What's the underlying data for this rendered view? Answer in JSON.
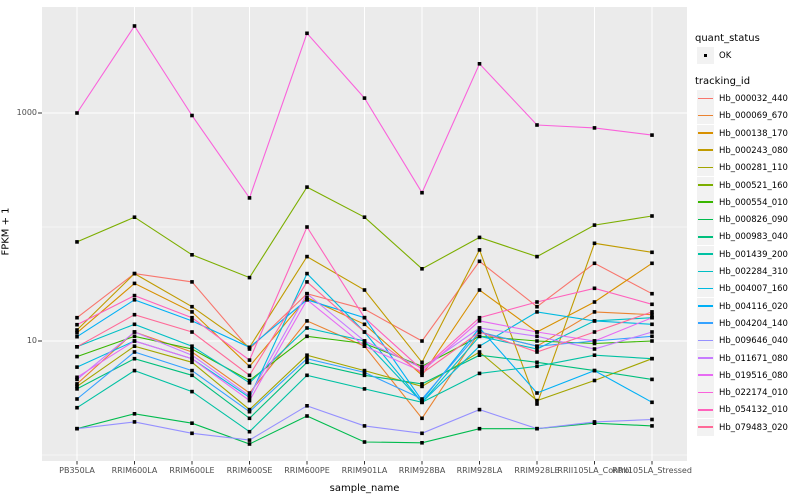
{
  "figure": {
    "background": "#FFFFFF",
    "panel_background": "#EBEBEB",
    "gridline_color": "#FFFFFF",
    "tick_label_color": "#4D4D4D",
    "point_color": "#000000"
  },
  "legend": {
    "quant_status_title": "quant_status",
    "quant_status_items": [
      {
        "label": "OK",
        "marker": "black-point"
      }
    ],
    "tracking_id_title": "tracking_id"
  },
  "chart_data": {
    "type": "line",
    "title": "",
    "xlabel": "sample_name",
    "ylabel": "FPKM + 1",
    "y_scale": "log10",
    "ylim": [
      0.88,
      8500
    ],
    "grid": "on",
    "legend_position": "right",
    "y_ticks": [
      {
        "label": "1000",
        "value": 1000
      },
      {
        "label": "10",
        "value": 10
      }
    ],
    "y_minor_breaks": [
      1,
      100
    ],
    "categories": [
      "PB350LA",
      "RRIM600LA",
      "RRIM600LE",
      "RRIM600SE",
      "RRIM600PE",
      "RRIM901LA",
      "RRIM928BA",
      "RRIM928LA",
      "RRIM928LE",
      "RRII105LA_Control",
      "RRII105LA_Stressed"
    ],
    "series": [
      {
        "name": "Hb_000032_440",
        "color": "#F8766D",
        "values": [
          16,
          39,
          33,
          8.5,
          26,
          19,
          10,
          50,
          20,
          48,
          26
        ]
      },
      {
        "name": "Hb_000069_670",
        "color": "#EA8331",
        "values": [
          4.2,
          12,
          8,
          3.5,
          15,
          9,
          2.1,
          12,
          9,
          18,
          17
        ]
      },
      {
        "name": "Hb_000138_170",
        "color": "#D89000",
        "values": [
          11.8,
          32,
          18,
          6,
          24,
          14,
          5,
          28,
          12,
          22,
          48
        ]
      },
      {
        "name": "Hb_000243_080",
        "color": "#C09B00",
        "values": [
          12.5,
          39,
          20,
          8.8,
          55,
          28,
          6.5,
          63,
          2.8,
          72,
          60
        ]
      },
      {
        "name": "Hb_000281_110",
        "color": "#A3A500",
        "values": [
          4.0,
          9,
          6.5,
          2.5,
          7.5,
          5.5,
          4.0,
          8,
          3.0,
          4.5,
          7
        ]
      },
      {
        "name": "Hb_000521_160",
        "color": "#7CAE00",
        "values": [
          74,
          122,
          57,
          36,
          224,
          122,
          43,
          81,
          55,
          104,
          125
        ]
      },
      {
        "name": "Hb_000554_010",
        "color": "#39B600",
        "values": [
          7.3,
          11,
          8.5,
          4.5,
          11,
          9.5,
          6,
          11,
          10,
          9.5,
          10
        ]
      },
      {
        "name": "Hb_000826_090",
        "color": "#00BB4E",
        "values": [
          1.7,
          2.3,
          1.9,
          1.25,
          2.2,
          1.3,
          1.28,
          1.7,
          1.7,
          1.9,
          1.8
        ]
      },
      {
        "name": "Hb_000983_040",
        "color": "#00BF7D",
        "values": [
          3.8,
          7,
          5,
          2.1,
          6.5,
          5,
          4.2,
          7.5,
          6.5,
          5.5,
          4.6
        ]
      },
      {
        "name": "Hb_001439_200",
        "color": "#00C1A3",
        "values": [
          2.6,
          5.5,
          3.6,
          1.6,
          5,
          3.8,
          2.9,
          5.2,
          6,
          7.5,
          7
        ]
      },
      {
        "name": "Hb_002284_310",
        "color": "#00BFC4",
        "values": [
          8.9,
          14,
          9,
          4.3,
          13,
          10,
          2.9,
          11,
          8.5,
          15,
          16
        ]
      },
      {
        "name": "Hb_004007_160",
        "color": "#00BAE0",
        "values": [
          5.9,
          10,
          7,
          3.2,
          39,
          12,
          2.9,
          9,
          18,
          15,
          14
        ]
      },
      {
        "name": "Hb_004116_020",
        "color": "#00B0F6",
        "values": [
          10.9,
          23,
          15,
          8.8,
          23,
          16,
          3.0,
          13,
          3.5,
          5.5,
          2.9
        ]
      },
      {
        "name": "Hb_004204_140",
        "color": "#35A2FF",
        "values": [
          3.1,
          8,
          5.5,
          2.4,
          7,
          5.3,
          3.1,
          12,
          9,
          10,
          11
        ]
      },
      {
        "name": "Hb_009646_040",
        "color": "#9590FF",
        "values": [
          1.7,
          1.95,
          1.55,
          1.35,
          2.7,
          1.8,
          1.55,
          2.5,
          1.7,
          1.95,
          2.05
        ]
      },
      {
        "name": "Hb_011671_080",
        "color": "#C77CFF",
        "values": [
          4.6,
          12,
          7.5,
          3.3,
          26,
          10,
          5.8,
          13,
          11,
          8.5,
          12
        ]
      },
      {
        "name": "Hb_019516_080",
        "color": "#E76BF3",
        "values": [
          4.8,
          10,
          7,
          3.0,
          23,
          9,
          5.4,
          15,
          12,
          10,
          16
        ]
      },
      {
        "name": "Hb_022174_010",
        "color": "#FA62DB",
        "values": [
          1000,
          5800,
          950,
          180,
          5000,
          1350,
          200,
          2700,
          785,
          740,
          640
        ]
      },
      {
        "name": "Hb_054132_010",
        "color": "#FF62BC",
        "values": [
          13.9,
          25,
          16,
          6.8,
          100,
          16,
          5.6,
          16,
          22,
          29,
          21
        ]
      },
      {
        "name": "Hb_079483_020",
        "color": "#FF6A98",
        "values": [
          8.9,
          17,
          12,
          5,
          33,
          12,
          5.2,
          12,
          8,
          12,
          18
        ]
      }
    ]
  }
}
